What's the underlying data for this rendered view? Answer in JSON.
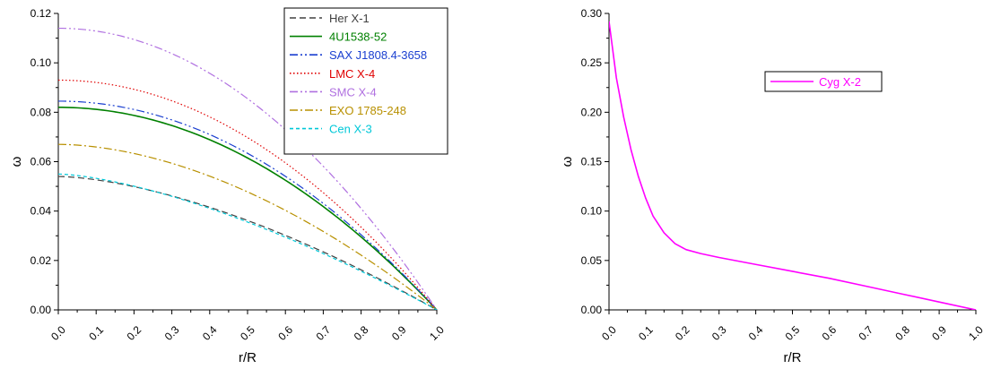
{
  "chart_data": [
    {
      "type": "line",
      "title": "",
      "xlabel": "r/R",
      "ylabel": "ω",
      "xlim": [
        0,
        1
      ],
      "ylim": [
        0,
        0.12
      ],
      "x_ticks": [
        "0.0",
        "0.1",
        "0.2",
        "0.3",
        "0.4",
        "0.5",
        "0.6",
        "0.7",
        "0.8",
        "0.9",
        "1.0"
      ],
      "y_ticks": [
        "0.00",
        "0.02",
        "0.04",
        "0.06",
        "0.08",
        "0.10",
        "0.12"
      ],
      "grid": false,
      "legend_position": "top-right",
      "series": [
        {
          "name": "Her X-1",
          "color": "#404040",
          "dash": "dashed",
          "omega0": 0.054,
          "exponent": 1.6
        },
        {
          "name": "4U1538-52",
          "color": "#008000",
          "dash": "solid",
          "omega0": 0.082,
          "exponent": 2.0
        },
        {
          "name": "SAX J1808.4-3658",
          "color": "#1a3fd0",
          "dash": "dash-dot-dot",
          "omega0": 0.0845,
          "exponent": 2.0
        },
        {
          "name": "LMC X-4",
          "color": "#e00000",
          "dash": "dotted",
          "omega0": 0.093,
          "exponent": 2.0
        },
        {
          "name": "SMC X-4",
          "color": "#b070e0",
          "dash": "dash-dot-dot",
          "omega0": 0.114,
          "exponent": 2.0
        },
        {
          "name": "EXO 1785-248",
          "color": "#b89000",
          "dash": "dash-dot",
          "omega0": 0.067,
          "exponent": 1.8
        },
        {
          "name": "Cen X-3",
          "color": "#00c8d8",
          "dash": "short-dash",
          "omega0": 0.055,
          "exponent": 1.5
        }
      ]
    },
    {
      "type": "line",
      "title": "",
      "xlabel": "r/R",
      "ylabel": "ω",
      "xlim": [
        0,
        1
      ],
      "ylim": [
        0,
        0.3
      ],
      "x_ticks": [
        "0.0",
        "0.1",
        "0.2",
        "0.3",
        "0.4",
        "0.5",
        "0.6",
        "0.7",
        "0.8",
        "0.9",
        "1.0"
      ],
      "y_ticks": [
        "0.00",
        "0.05",
        "0.10",
        "0.15",
        "0.20",
        "0.25",
        "0.30"
      ],
      "grid": false,
      "legend_position": "upper-center",
      "series": [
        {
          "name": "Cyg X-2",
          "color": "#ff00ff",
          "dash": "solid",
          "x": [
            0,
            0.02,
            0.04,
            0.06,
            0.08,
            0.1,
            0.12,
            0.15,
            0.18,
            0.21,
            0.25,
            0.3,
            0.4,
            0.5,
            0.6,
            0.7,
            0.8,
            0.9,
            1.0
          ],
          "y": [
            0.292,
            0.235,
            0.195,
            0.162,
            0.135,
            0.113,
            0.095,
            0.078,
            0.067,
            0.061,
            0.057,
            0.053,
            0.046,
            0.039,
            0.032,
            0.024,
            0.016,
            0.008,
            0.0
          ]
        }
      ]
    }
  ]
}
